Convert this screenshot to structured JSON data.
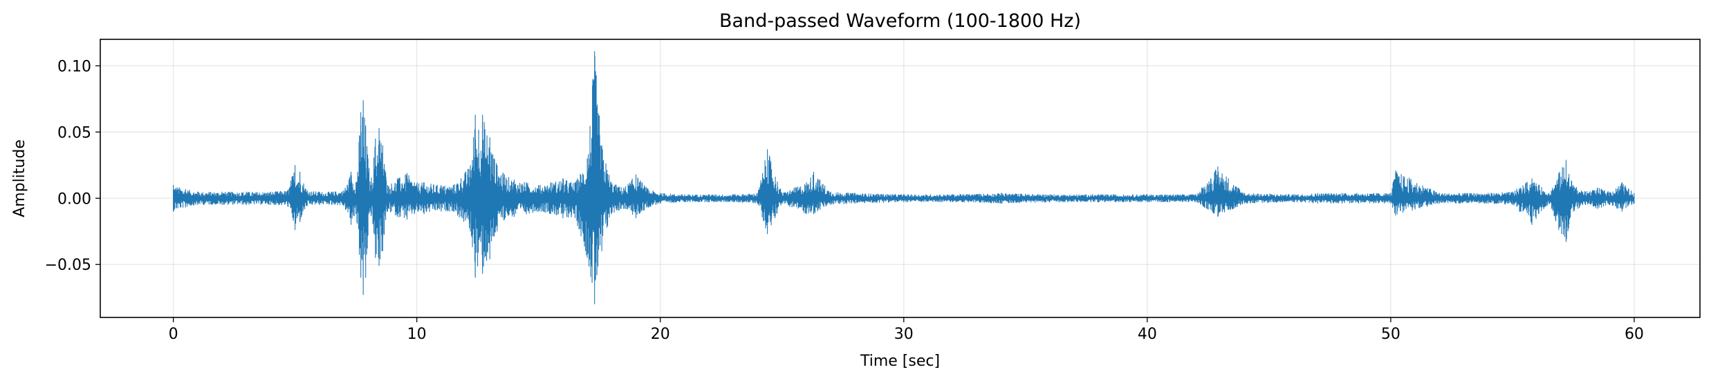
{
  "chart_data": {
    "type": "line",
    "title": "Band-passed Waveform (100-1800 Hz)",
    "xlabel": "Time [sec]",
    "ylabel": "Amplitude",
    "xlim": [
      -3,
      62.7
    ],
    "ylim": [
      -0.09,
      0.12
    ],
    "grid": true,
    "legend": false,
    "x_ticks": [
      0,
      10,
      20,
      30,
      40,
      50,
      60
    ],
    "x_tick_labels": [
      "0",
      "10",
      "20",
      "30",
      "40",
      "50",
      "60"
    ],
    "y_ticks": [
      -0.05,
      0.0,
      0.05,
      0.1
    ],
    "y_tick_labels": [
      "−0.05",
      "0.00",
      "0.05",
      "0.10"
    ],
    "line_color": "#1f77b4",
    "series": [
      {
        "envelope_time_sec": [
          0.0,
          0.5,
          1.0,
          2.0,
          3.0,
          4.0,
          4.7,
          5.0,
          5.2,
          5.5,
          6.0,
          6.5,
          7.0,
          7.3,
          7.5,
          7.7,
          7.8,
          7.9,
          8.1,
          8.3,
          8.45,
          8.6,
          8.8,
          9.2,
          9.6,
          9.9,
          10.3,
          11.0,
          11.5,
          12.2,
          12.4,
          12.7,
          13.0,
          13.3,
          13.6,
          14.0,
          14.5,
          15.0,
          15.5,
          16.0,
          16.5,
          17.0,
          17.3,
          17.6,
          18.0,
          18.5,
          19.0,
          19.5,
          20.0,
          21.0,
          22.0,
          23.0,
          24.0,
          24.4,
          25.0,
          26.0,
          26.3,
          27.0,
          28.0,
          30.0,
          32.0,
          34.0,
          36.0,
          38.0,
          40.0,
          42.0,
          42.9,
          44.0,
          46.0,
          47.0,
          48.0,
          50.0,
          50.2,
          52.0,
          54.0,
          55.0,
          55.8,
          56.5,
          56.9,
          57.2,
          57.5,
          58.0,
          58.5,
          59.0,
          59.5,
          60.0
        ],
        "envelope_max": [
          0.01,
          0.007,
          0.005,
          0.005,
          0.005,
          0.005,
          0.006,
          0.025,
          0.02,
          0.006,
          0.005,
          0.005,
          0.006,
          0.02,
          0.012,
          0.065,
          0.074,
          0.055,
          0.01,
          0.045,
          0.053,
          0.04,
          0.01,
          0.015,
          0.019,
          0.012,
          0.012,
          0.01,
          0.01,
          0.025,
          0.063,
          0.063,
          0.046,
          0.025,
          0.018,
          0.014,
          0.012,
          0.01,
          0.012,
          0.015,
          0.012,
          0.03,
          0.111,
          0.04,
          0.012,
          0.008,
          0.018,
          0.007,
          0.004,
          0.003,
          0.003,
          0.003,
          0.004,
          0.037,
          0.004,
          0.012,
          0.02,
          0.005,
          0.004,
          0.003,
          0.003,
          0.004,
          0.003,
          0.003,
          0.003,
          0.003,
          0.024,
          0.004,
          0.003,
          0.004,
          0.004,
          0.004,
          0.021,
          0.004,
          0.004,
          0.005,
          0.015,
          0.004,
          0.019,
          0.029,
          0.01,
          0.005,
          0.008,
          0.005,
          0.012,
          0.004
        ],
        "envelope_min": [
          -0.01,
          -0.007,
          -0.005,
          -0.005,
          -0.005,
          -0.005,
          -0.006,
          -0.024,
          -0.018,
          -0.006,
          -0.005,
          -0.005,
          -0.006,
          -0.02,
          -0.012,
          -0.06,
          -0.073,
          -0.06,
          -0.01,
          -0.045,
          -0.051,
          -0.04,
          -0.01,
          -0.014,
          -0.016,
          -0.012,
          -0.012,
          -0.01,
          -0.01,
          -0.025,
          -0.06,
          -0.057,
          -0.046,
          -0.025,
          -0.016,
          -0.014,
          -0.012,
          -0.01,
          -0.012,
          -0.015,
          -0.015,
          -0.045,
          -0.08,
          -0.04,
          -0.012,
          -0.008,
          -0.015,
          -0.007,
          -0.004,
          -0.003,
          -0.003,
          -0.003,
          -0.004,
          -0.027,
          -0.004,
          -0.012,
          -0.012,
          -0.005,
          -0.004,
          -0.003,
          -0.003,
          -0.004,
          -0.003,
          -0.003,
          -0.003,
          -0.003,
          -0.014,
          -0.004,
          -0.003,
          -0.004,
          -0.004,
          -0.004,
          -0.013,
          -0.004,
          -0.004,
          -0.005,
          -0.02,
          -0.004,
          -0.024,
          -0.033,
          -0.01,
          -0.005,
          -0.008,
          -0.005,
          -0.01,
          -0.004
        ]
      }
    ]
  }
}
